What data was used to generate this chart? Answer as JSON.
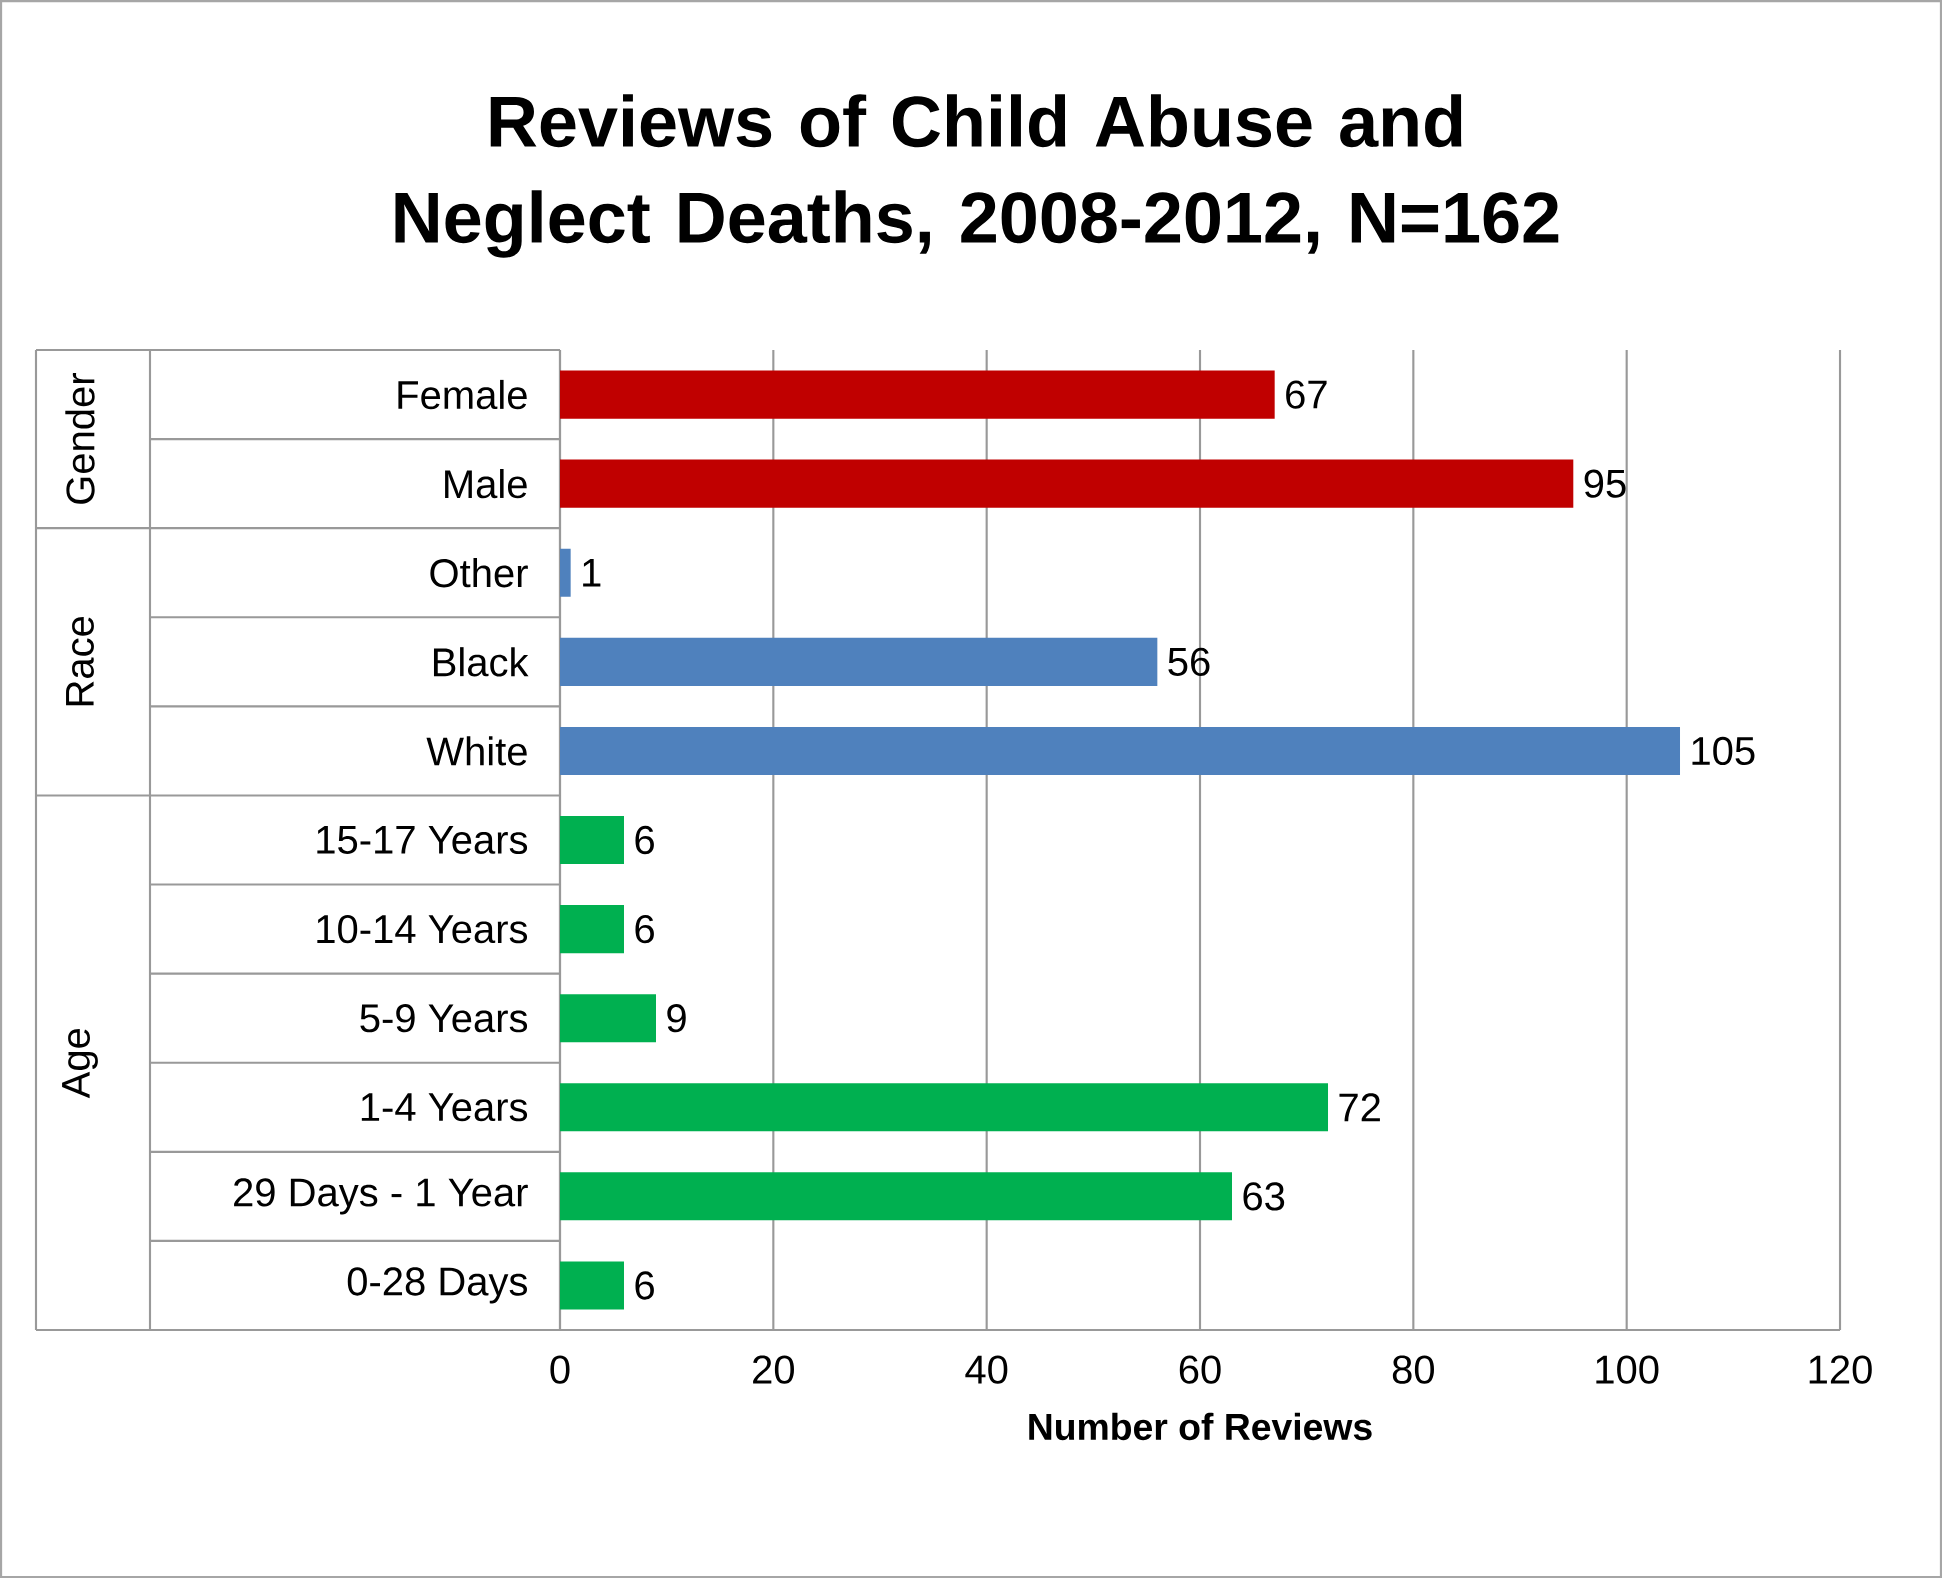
{
  "chart_data": {
    "type": "bar",
    "orientation": "horizontal",
    "title": "Reviews of Child Abuse and Neglect Deaths, 2008-2012, N=162",
    "xlabel": "Number of Reviews",
    "categories": [
      "Female",
      "Male",
      "Other",
      "Black",
      "White",
      "15-17 Years",
      "10-14 Years",
      "5-9 Years",
      "1-4 Years",
      "29 Days - 1 Year",
      "0-28 Days"
    ],
    "values": [
      67,
      95,
      1,
      56,
      105,
      6,
      6,
      9,
      72,
      63,
      6
    ],
    "colors": [
      "#c00000",
      "#c00000",
      "#4f81bd",
      "#4f81bd",
      "#4f81bd",
      "#00b050",
      "#00b050",
      "#00b050",
      "#00b050",
      "#00b050",
      "#00b050"
    ],
    "annotations": [
      "Gender",
      "Race",
      "Age"
    ],
    "xlim": [
      0,
      120
    ],
    "xticks": [
      0,
      20,
      40,
      60,
      80,
      100,
      120
    ],
    "grid": "x",
    "data_labels": true
  }
}
